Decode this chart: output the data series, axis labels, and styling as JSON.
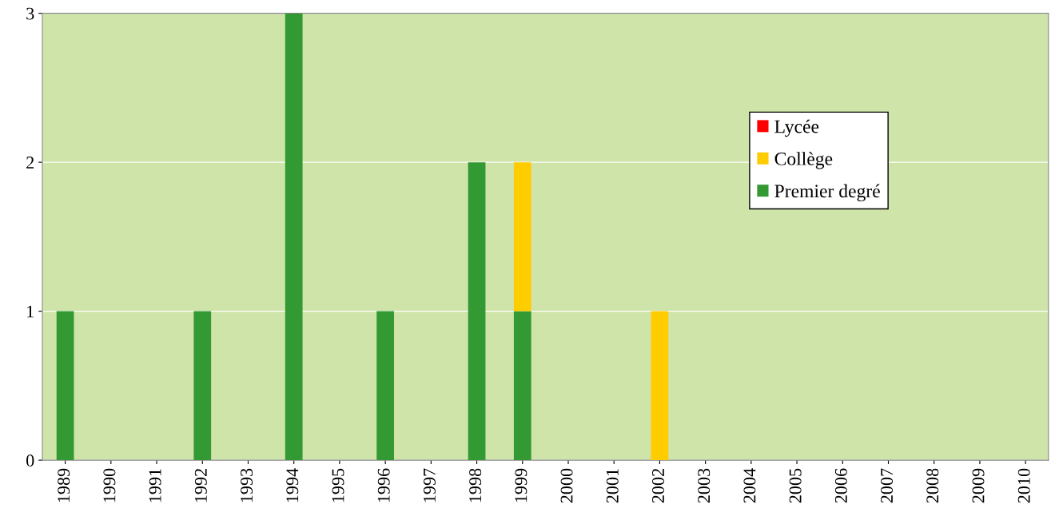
{
  "chart_data": {
    "type": "bar",
    "stacked": true,
    "categories": [
      "1989",
      "1990",
      "1991",
      "1992",
      "1993",
      "1994",
      "1995",
      "1996",
      "1997",
      "1998",
      "1999",
      "2000",
      "2001",
      "2002",
      "2003",
      "2004",
      "2005",
      "2006",
      "2007",
      "2008",
      "2009",
      "2010"
    ],
    "series": [
      {
        "name": "Premier degré",
        "color": "#339933",
        "values": [
          1,
          0,
          0,
          1,
          0,
          3,
          0,
          1,
          0,
          2,
          1,
          0,
          0,
          0,
          0,
          0,
          0,
          0,
          0,
          0,
          0,
          0
        ]
      },
      {
        "name": "Collège",
        "color": "#ffcc00",
        "values": [
          0,
          0,
          0,
          0,
          0,
          0,
          0,
          0,
          0,
          0,
          1,
          0,
          0,
          1,
          0,
          0,
          0,
          0,
          0,
          0,
          0,
          0
        ]
      },
      {
        "name": "Lycée",
        "color": "#ff0000",
        "values": [
          0,
          0,
          0,
          0,
          0,
          0,
          0,
          0,
          0,
          0,
          0,
          0,
          0,
          0,
          0,
          0,
          0,
          0,
          0,
          0,
          0,
          0
        ]
      }
    ],
    "ylim": [
      0,
      3
    ],
    "yticks": [
      0,
      1,
      2,
      3
    ],
    "grid": "y",
    "legend": "top right"
  }
}
